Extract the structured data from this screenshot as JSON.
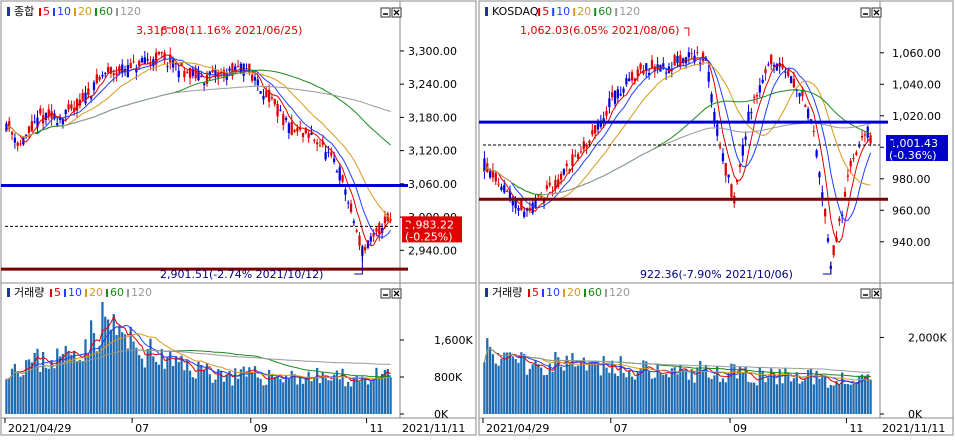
{
  "colors": {
    "up": "#e00000",
    "down": "#0000e0",
    "ma5": "#e00000",
    "ma10": "#1f3fff",
    "ma20": "#d89a1a",
    "ma60": "#1a8a1a",
    "ma120": "#9a9a9a",
    "volume": "#1f6bb0",
    "support": "#0000cc",
    "resistance": "#7a0000",
    "curPriceBg_left": "#e00000",
    "curPriceBg_right": "#0000c8"
  },
  "chart_data": [
    {
      "type": "candlestick",
      "panel": "left-price",
      "name": "종합",
      "legend": [
        "종합",
        "5",
        "10",
        "20",
        "60",
        "120"
      ],
      "ylim": [
        2890,
        3345
      ],
      "yticks": [
        3300,
        3240,
        3180,
        3120,
        3060,
        3000,
        2940
      ],
      "ytick_labels": [
        "3,300.00",
        "3,240.00",
        "3,180.00",
        "3,120.00",
        "3,060.00",
        "3,000.00",
        "2,940.00"
      ],
      "x_start_label": "2021/04/29",
      "x_end_label": "2021/11/11",
      "x_tick_labels": [
        "2021/04/29",
        "07",
        "09",
        "11"
      ],
      "n_bars": 137,
      "high_annotation": "3,316.08(11.16% 2021/06/25)",
      "low_annotation": "2,901.51(-2.74% 2021/10/12)",
      "current_value": "2,983.22",
      "current_change": "(-0.25%)",
      "current_numeric": 2983.22,
      "support_line": 3057,
      "resistance_line": 2906,
      "keypoints": [
        [
          0,
          3170
        ],
        [
          5,
          3130
        ],
        [
          12,
          3180
        ],
        [
          20,
          3180
        ],
        [
          25,
          3200
        ],
        [
          35,
          3260
        ],
        [
          45,
          3270
        ],
        [
          55,
          3290
        ],
        [
          60,
          3270
        ],
        [
          70,
          3250
        ],
        [
          85,
          3270
        ],
        [
          95,
          3200
        ],
        [
          100,
          3160
        ],
        [
          110,
          3140
        ],
        [
          118,
          3080
        ],
        [
          122,
          3010
        ],
        [
          126,
          2940
        ],
        [
          130,
          2960
        ],
        [
          135,
          3000
        ],
        [
          137,
          2983
        ]
      ]
    },
    {
      "type": "bar",
      "panel": "left-volume",
      "name": "거래량",
      "legend": [
        "거래량",
        "5",
        "10",
        "20",
        "60",
        "120"
      ],
      "ylim": [
        0,
        2400
      ],
      "yticks": [
        1600,
        800,
        0
      ],
      "ytick_labels": [
        "1,600K",
        "800K",
        "0K"
      ],
      "n_bars": 137,
      "keypoints": [
        [
          0,
          1000
        ],
        [
          20,
          1200
        ],
        [
          30,
          1600
        ],
        [
          35,
          2000
        ],
        [
          45,
          1400
        ],
        [
          60,
          1050
        ],
        [
          80,
          800
        ],
        [
          100,
          800
        ],
        [
          120,
          750
        ],
        [
          137,
          780
        ]
      ]
    },
    {
      "type": "candlestick",
      "panel": "right-price",
      "name": "KOSDAQ",
      "legend": [
        "KOSDAQ",
        "5",
        "10",
        "20",
        "60",
        "120"
      ],
      "ylim": [
        917,
        1077
      ],
      "yticks": [
        1060,
        1040,
        1020,
        1000,
        980,
        960,
        940
      ],
      "ytick_labels": [
        "1,060.00",
        "1,040.00",
        "1,020.00",
        "1,000.00",
        "980.00",
        "960.00",
        "940.00"
      ],
      "x_start_label": "2021/04/29",
      "x_end_label": "2021/11/11",
      "x_tick_labels": [
        "2021/04/29",
        "07",
        "09",
        "11"
      ],
      "n_bars": 137,
      "high_annotation": "1,062.03(6.05% 2021/08/06)",
      "low_annotation": "922.36(-7.90% 2021/10/06)",
      "current_value": "1,001.43",
      "current_change": "(-0.36%)",
      "current_numeric": 1001.43,
      "support_line": 1016,
      "resistance_line": 967,
      "keypoints": [
        [
          0,
          990
        ],
        [
          8,
          970
        ],
        [
          15,
          960
        ],
        [
          25,
          975
        ],
        [
          35,
          1000
        ],
        [
          45,
          1030
        ],
        [
          55,
          1050
        ],
        [
          65,
          1050
        ],
        [
          72,
          1060
        ],
        [
          78,
          1055
        ],
        [
          83,
          1000
        ],
        [
          88,
          965
        ],
        [
          93,
          1020
        ],
        [
          100,
          1055
        ],
        [
          108,
          1045
        ],
        [
          115,
          1020
        ],
        [
          120,
          960
        ],
        [
          122,
          925
        ],
        [
          126,
          960
        ],
        [
          130,
          995
        ],
        [
          135,
          1010
        ],
        [
          137,
          1001
        ]
      ]
    },
    {
      "type": "bar",
      "panel": "right-volume",
      "name": "거래량",
      "legend": [
        "거래량",
        "5",
        "10",
        "20",
        "60",
        "120"
      ],
      "ylim": [
        0,
        2900
      ],
      "yticks": [
        2000,
        0
      ],
      "ytick_labels": [
        "2,000K",
        "0K"
      ],
      "n_bars": 137,
      "keypoints": [
        [
          0,
          1800
        ],
        [
          5,
          1500
        ],
        [
          15,
          1350
        ],
        [
          30,
          1300
        ],
        [
          50,
          1200
        ],
        [
          70,
          1100
        ],
        [
          90,
          1000
        ],
        [
          110,
          950
        ],
        [
          125,
          900
        ],
        [
          137,
          880
        ]
      ]
    }
  ]
}
